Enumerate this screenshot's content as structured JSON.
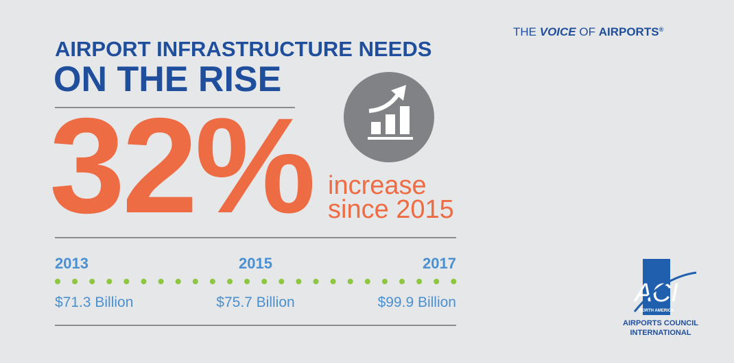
{
  "tagline": {
    "pre": "THE",
    "strong": "VOICE",
    "mid": "OF",
    "end": "AIRPORTS",
    "mark": "®"
  },
  "title": {
    "line1": "AIRPORT INFRASTRUCTURE NEEDS",
    "line2": "ON THE RISE"
  },
  "stat": {
    "value": "32%",
    "caption1": "increase",
    "caption2": "since 2015"
  },
  "timeline": [
    {
      "year": "2013",
      "amount": "$71.3 Billion"
    },
    {
      "year": "2015",
      "amount": "$75.7 Billion"
    },
    {
      "year": "2017",
      "amount": "$99.9 Billion"
    }
  ],
  "logo": {
    "mark": "ACI",
    "region": "NORTH AMERICA",
    "name1": "AIRPORTS COUNCIL",
    "name2": "INTERNATIONAL"
  }
}
